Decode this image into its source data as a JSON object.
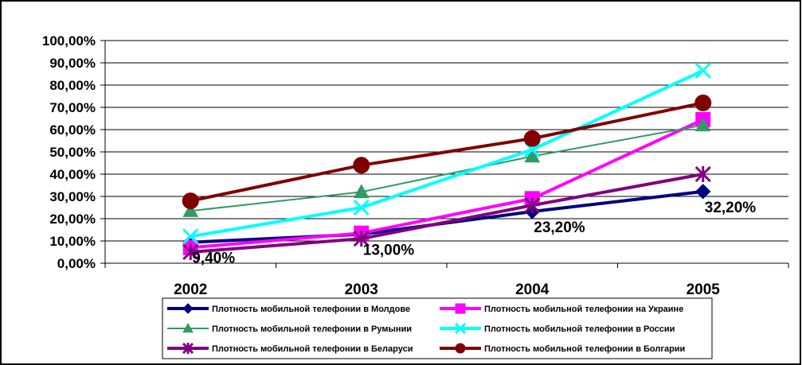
{
  "chart_data": {
    "type": "line",
    "title": "",
    "xlabel": "",
    "ylabel": "",
    "categories": [
      "2002",
      "2003",
      "2004",
      "2005"
    ],
    "ylim": [
      0,
      100
    ],
    "y_ticks": [
      "0,00%",
      "10,00%",
      "20,00%",
      "30,00%",
      "40,00%",
      "50,00%",
      "60,00%",
      "70,00%",
      "80,00%",
      "90,00%",
      "100,00%"
    ],
    "grid": "horizontal",
    "legend_position": "bottom",
    "series": [
      {
        "name": "Плотность мобильной телефонии в Молдове",
        "values": [
          9.4,
          13.0,
          23.2,
          32.2
        ],
        "color": "#000080",
        "marker": "diamond"
      },
      {
        "name": "Плотность мобильной телефонии на Украине",
        "values": [
          7.0,
          13.5,
          29.0,
          64.5
        ],
        "color": "#ff00ff",
        "marker": "square"
      },
      {
        "name": "Плотность мобильной телефонии в Румынии",
        "values": [
          23.5,
          32.0,
          48.0,
          62.0
        ],
        "color": "#339966",
        "marker": "triangle"
      },
      {
        "name": "Плотность мобильной телефонии в России",
        "values": [
          12.0,
          25.0,
          51.0,
          86.5
        ],
        "color": "#00ffff",
        "marker": "x"
      },
      {
        "name": "Плотность мобильной телефонии в Беларуси",
        "values": [
          5.0,
          11.0,
          26.0,
          40.0
        ],
        "color": "#800080",
        "marker": "asterisk"
      },
      {
        "name": "Плотность мобильной телефонии в Болгарии",
        "values": [
          28.0,
          44.0,
          56.0,
          72.0
        ],
        "color": "#800000",
        "marker": "circle"
      }
    ],
    "data_labels": [
      {
        "series": 0,
        "index": 0,
        "text": "9,40%"
      },
      {
        "series": 0,
        "index": 1,
        "text": "13,00%"
      },
      {
        "series": 0,
        "index": 2,
        "text": "23,20%"
      },
      {
        "series": 0,
        "index": 3,
        "text": "32,20%"
      }
    ]
  }
}
